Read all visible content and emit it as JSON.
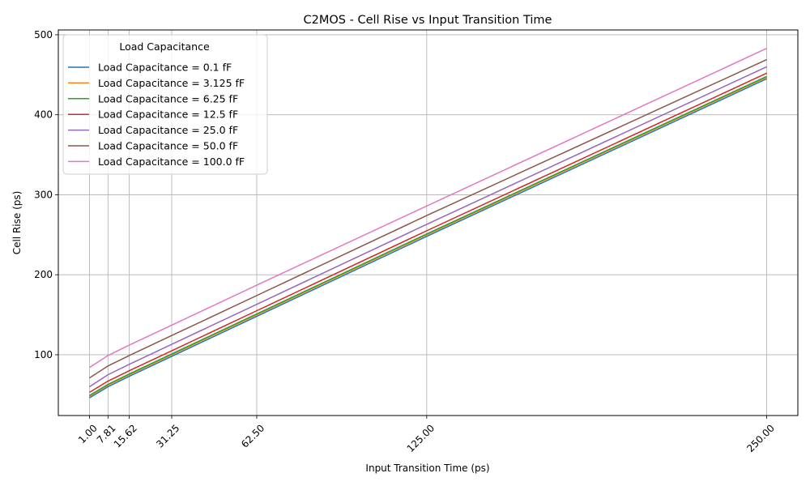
{
  "chart_data": {
    "type": "line",
    "title": "C2MOS - Cell Rise vs Input Transition Time",
    "xlabel": "Input Transition Time (ps)",
    "ylabel": "Cell Rise (ps)",
    "x": [
      1.0,
      7.81,
      15.62,
      31.25,
      62.5,
      125.0,
      250.0
    ],
    "x_tick_labels": [
      "1.00",
      "7.81",
      "15.62",
      "31.25",
      "62.50",
      "125.00",
      "250.00"
    ],
    "xlim": [
      -10.45,
      261.45
    ],
    "ylim": [
      24,
      506
    ],
    "y_ticks": [
      100,
      200,
      300,
      400,
      500
    ],
    "y_tick_labels": [
      "100",
      "200",
      "300",
      "400",
      "500"
    ],
    "grid": true,
    "legend": {
      "title": "Load Capacitance",
      "placement": "top-left"
    },
    "series": [
      {
        "name": "Load Capacitance = 0.1 fF",
        "color": "#1f77b4",
        "values": [
          46,
          60,
          73,
          98,
          148,
          248,
          445
        ]
      },
      {
        "name": "Load Capacitance = 3.125 fF",
        "color": "#ff7f0e",
        "values": [
          48,
          62,
          75,
          100,
          150,
          250,
          447
        ]
      },
      {
        "name": "Load Capacitance = 6.25 fF",
        "color": "#2ca02c",
        "values": [
          49,
          63,
          76,
          101,
          151,
          251,
          448
        ]
      },
      {
        "name": "Load Capacitance = 12.5 fF",
        "color": "#d62728",
        "values": [
          53,
          67,
          80,
          105,
          155,
          255,
          452
        ]
      },
      {
        "name": "Load Capacitance = 25.0 fF",
        "color": "#9467bd",
        "values": [
          60,
          75,
          88,
          113,
          163,
          263,
          460
        ]
      },
      {
        "name": "Load Capacitance = 50.0 fF",
        "color": "#8c564b",
        "values": [
          71,
          86,
          99,
          124,
          174,
          274,
          469
        ]
      },
      {
        "name": "Load Capacitance = 100.0 fF",
        "color": "#e377c2",
        "values": [
          84,
          99,
          112,
          137,
          187,
          286,
          483
        ]
      }
    ]
  }
}
